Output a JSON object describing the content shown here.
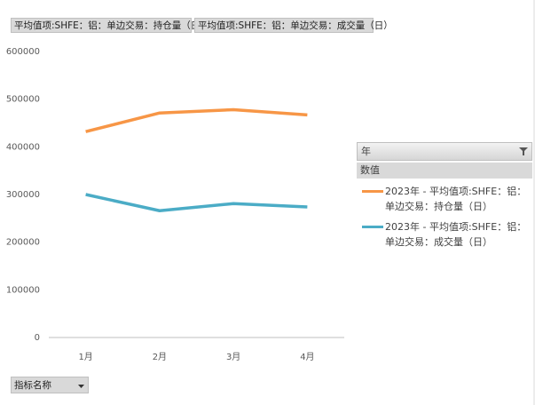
{
  "chart_data": {
    "type": "line",
    "field_buttons": [
      "平均值项:SHFE：铝：单边交易：持仓量（日）",
      "平均值项:SHFE：铝：单边交易：成交量（日）"
    ],
    "legend_title": "年",
    "legend_subtitle": "数值",
    "row_button": "指标名称",
    "categories": [
      "1月",
      "2月",
      "3月",
      "4月"
    ],
    "series": [
      {
        "name": "2023年 - 平均值项:SHFE：铝：单边交易：持仓量（日）",
        "color": "#f79646",
        "values": [
          432000,
          471000,
          478000,
          467000
        ]
      },
      {
        "name": "2023年 - 平均值项:SHFE：铝：单边交易：成交量（日）",
        "color": "#4bacc6",
        "values": [
          300000,
          266000,
          281000,
          274000
        ]
      }
    ],
    "ylim": [
      0,
      600000
    ],
    "yticks": [
      0,
      100000,
      200000,
      300000,
      400000,
      500000,
      600000
    ],
    "grid": false
  }
}
